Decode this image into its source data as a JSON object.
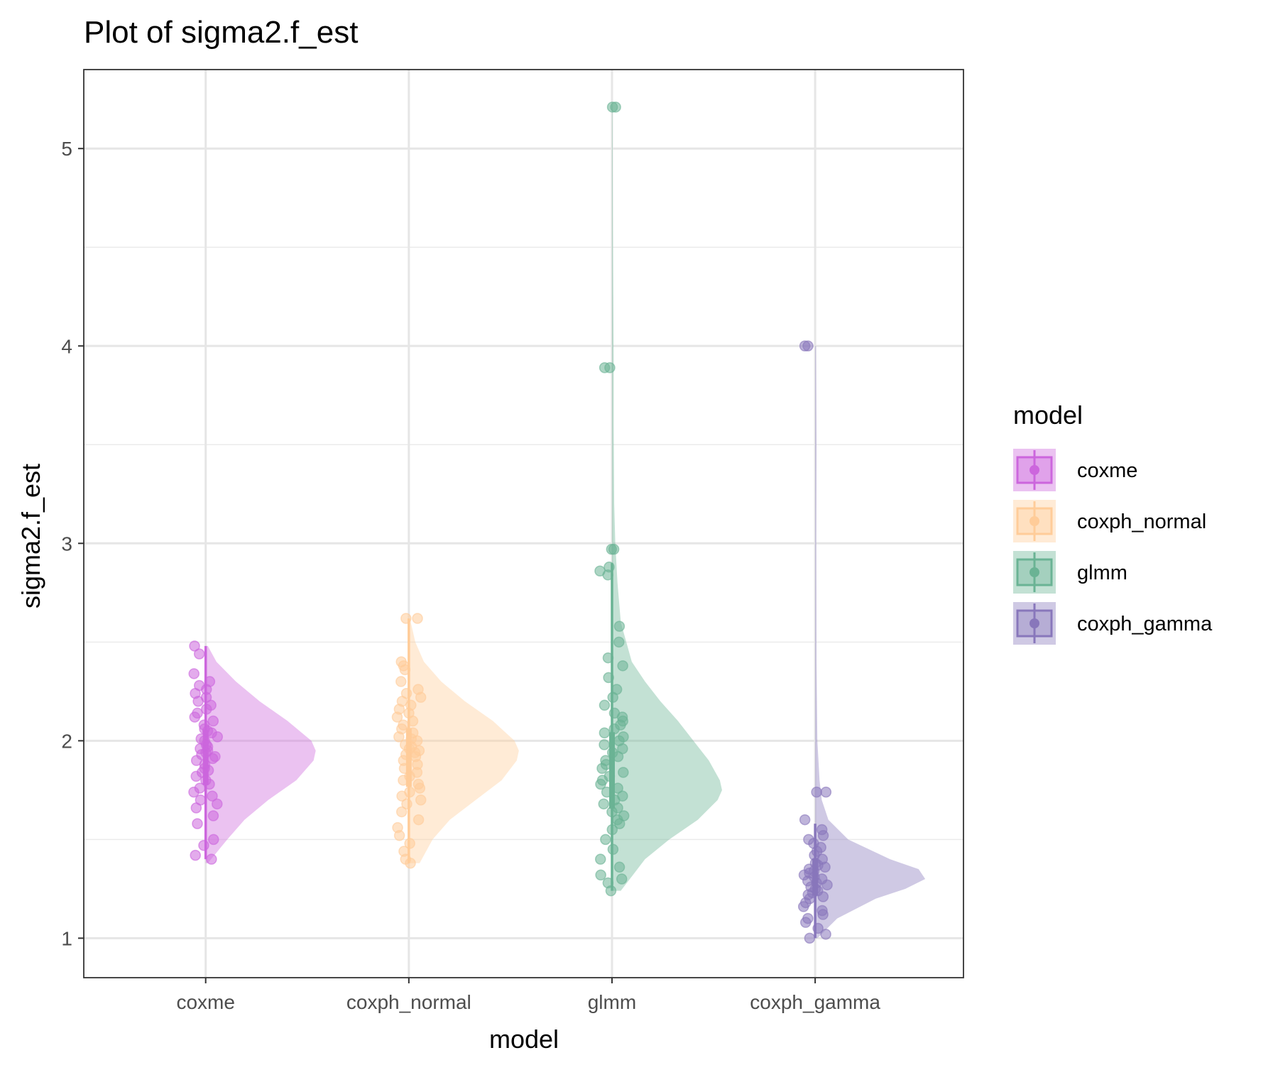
{
  "chart_data": {
    "type": "raincloud",
    "title": "Plot of sigma2.f_est",
    "xlabel": "model",
    "ylabel": "sigma2.f_est",
    "categories": [
      "coxme",
      "coxph_normal",
      "glmm",
      "coxph_gamma"
    ],
    "y_ticks": [
      1,
      2,
      3,
      4,
      5
    ],
    "ylim": [
      0.8,
      5.4
    ],
    "grid": true,
    "legend": {
      "title": "model",
      "position": "right"
    },
    "series": [
      {
        "name": "coxme",
        "color": "#CC66DD",
        "summary": {
          "min": 1.4,
          "q1": 1.78,
          "median": 1.93,
          "q3": 2.05,
          "max": 2.48
        },
        "density": {
          "y": [
            1.38,
            1.5,
            1.6,
            1.7,
            1.8,
            1.9,
            1.95,
            2.0,
            2.1,
            2.2,
            2.3,
            2.4,
            2.48
          ],
          "d": [
            0.02,
            0.2,
            0.36,
            0.58,
            0.84,
            1.0,
            1.02,
            0.98,
            0.76,
            0.5,
            0.28,
            0.1,
            0.02
          ]
        },
        "points": [
          1.4,
          1.42,
          1.47,
          1.5,
          1.58,
          1.62,
          1.66,
          1.68,
          1.7,
          1.72,
          1.74,
          1.76,
          1.78,
          1.8,
          1.82,
          1.84,
          1.85,
          1.86,
          1.88,
          1.9,
          1.91,
          1.92,
          1.93,
          1.94,
          1.95,
          1.96,
          1.97,
          1.98,
          2.0,
          2.01,
          2.02,
          2.04,
          2.05,
          2.06,
          2.08,
          2.1,
          2.12,
          2.14,
          2.16,
          2.18,
          2.2,
          2.22,
          2.24,
          2.26,
          2.28,
          2.3,
          2.34,
          2.44,
          2.48
        ]
      },
      {
        "name": "coxph_normal",
        "color": "#FFCC99",
        "summary": {
          "min": 1.38,
          "q1": 1.77,
          "median": 1.93,
          "q3": 2.06,
          "max": 2.62
        },
        "density": {
          "y": [
            1.38,
            1.5,
            1.6,
            1.7,
            1.8,
            1.9,
            1.95,
            2.0,
            2.1,
            2.2,
            2.3,
            2.4,
            2.5,
            2.62
          ],
          "d": [
            0.1,
            0.22,
            0.38,
            0.62,
            0.86,
            1.0,
            1.02,
            0.98,
            0.78,
            0.52,
            0.3,
            0.14,
            0.06,
            0.01
          ]
        },
        "points": [
          1.38,
          1.4,
          1.44,
          1.48,
          1.52,
          1.56,
          1.6,
          1.64,
          1.68,
          1.7,
          1.72,
          1.74,
          1.76,
          1.78,
          1.8,
          1.82,
          1.84,
          1.86,
          1.88,
          1.9,
          1.92,
          1.93,
          1.94,
          1.95,
          1.96,
          1.97,
          1.98,
          2.0,
          2.01,
          2.02,
          2.04,
          2.06,
          2.08,
          2.1,
          2.12,
          2.14,
          2.16,
          2.18,
          2.2,
          2.22,
          2.24,
          2.26,
          2.3,
          2.36,
          2.38,
          2.4,
          2.62,
          2.62
        ]
      },
      {
        "name": "glmm",
        "color": "#6AB394",
        "summary": {
          "min": 1.24,
          "q1": 1.66,
          "median": 1.8,
          "q3": 2.04,
          "max": 2.9
        },
        "density": {
          "y": [
            1.24,
            1.4,
            1.5,
            1.6,
            1.7,
            1.75,
            1.8,
            1.9,
            2.0,
            2.1,
            2.2,
            2.3,
            2.4,
            2.6,
            2.8,
            3.0,
            3.2,
            3.6,
            3.9,
            4.2,
            4.6,
            5.0,
            5.22
          ],
          "d": [
            0.08,
            0.3,
            0.52,
            0.78,
            0.96,
            1.0,
            0.98,
            0.88,
            0.74,
            0.6,
            0.44,
            0.3,
            0.18,
            0.08,
            0.05,
            0.03,
            0.02,
            0.015,
            0.015,
            0.012,
            0.008,
            0.006,
            0.004
          ]
        },
        "points": [
          1.24,
          1.28,
          1.3,
          1.32,
          1.36,
          1.4,
          1.45,
          1.5,
          1.55,
          1.58,
          1.6,
          1.62,
          1.64,
          1.66,
          1.68,
          1.7,
          1.72,
          1.74,
          1.76,
          1.78,
          1.8,
          1.82,
          1.84,
          1.86,
          1.88,
          1.9,
          1.92,
          1.94,
          1.96,
          1.98,
          2.0,
          2.02,
          2.04,
          2.06,
          2.08,
          2.1,
          2.12,
          2.14,
          2.18,
          2.22,
          2.26,
          2.32,
          2.38,
          2.42,
          2.5,
          2.58,
          2.84,
          2.86,
          2.88,
          2.97,
          2.97,
          3.89,
          3.89,
          5.21,
          5.21
        ]
      },
      {
        "name": "coxph_gamma",
        "color": "#8877BB",
        "summary": {
          "min": 1.0,
          "q1": 1.22,
          "median": 1.3,
          "q3": 1.4,
          "max": 1.58
        },
        "density": {
          "y": [
            1.0,
            1.1,
            1.2,
            1.25,
            1.3,
            1.35,
            1.4,
            1.5,
            1.6,
            1.7,
            1.8,
            2.0,
            2.4,
            3.0,
            3.5,
            4.0
          ],
          "d": [
            0.02,
            0.2,
            0.55,
            0.82,
            1.0,
            0.94,
            0.68,
            0.3,
            0.12,
            0.06,
            0.04,
            0.02,
            0.012,
            0.01,
            0.012,
            0.008
          ]
        },
        "points": [
          1.0,
          1.02,
          1.05,
          1.08,
          1.1,
          1.12,
          1.14,
          1.16,
          1.18,
          1.2,
          1.21,
          1.22,
          1.23,
          1.24,
          1.25,
          1.26,
          1.27,
          1.28,
          1.29,
          1.3,
          1.31,
          1.32,
          1.33,
          1.34,
          1.35,
          1.36,
          1.37,
          1.38,
          1.4,
          1.42,
          1.44,
          1.46,
          1.48,
          1.5,
          1.52,
          1.55,
          1.6,
          1.74,
          1.74,
          4.0,
          4.0
        ]
      }
    ]
  }
}
